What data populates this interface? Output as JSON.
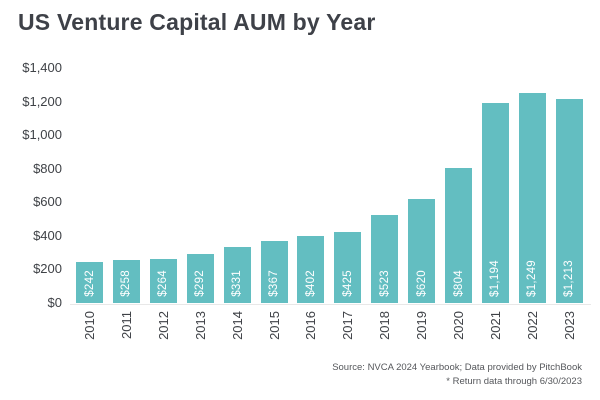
{
  "title": "US Venture Capital AUM by Year",
  "source": {
    "line1": "Source: NVCA 2024 Yearbook; Data provided by PitchBook",
    "line2": "* Return data through 6/30/2023"
  },
  "colors": {
    "bar": "#63BEC1",
    "title_text": "#3E4148",
    "axis_text": "#3F4247",
    "bar_label_text": "#FFFFFF",
    "source_text": "#55575B",
    "baseline": "#E8E8E8"
  },
  "chart_data": {
    "type": "bar",
    "title": "US Venture Capital AUM by Year",
    "categories": [
      "2010",
      "2011",
      "2012",
      "2013",
      "2014",
      "2015",
      "2016",
      "2017",
      "2018",
      "2019",
      "2020",
      "2021",
      "2022",
      "2023"
    ],
    "values": [
      242,
      258,
      264,
      292,
      331,
      367,
      402,
      425,
      523,
      620,
      804,
      1194,
      1249,
      1213
    ],
    "value_labels": [
      "$242",
      "$258",
      "$264",
      "$292",
      "$331",
      "$367",
      "$402",
      "$425",
      "$523",
      "$620",
      "$804",
      "$1,194",
      "$1,249",
      "$1,213"
    ],
    "xlabel": "",
    "ylabel": "",
    "ylim": [
      0,
      1400
    ],
    "ytick_step": 200,
    "ytick_labels": [
      "$0",
      "$200",
      "$400",
      "$600",
      "$800",
      "$1,000",
      "$1,200",
      "$1,400"
    ],
    "grid": false,
    "legend": null,
    "units": "USD billions",
    "bar_label_rotation_deg": -90,
    "x_label_rotation_deg": -90
  }
}
